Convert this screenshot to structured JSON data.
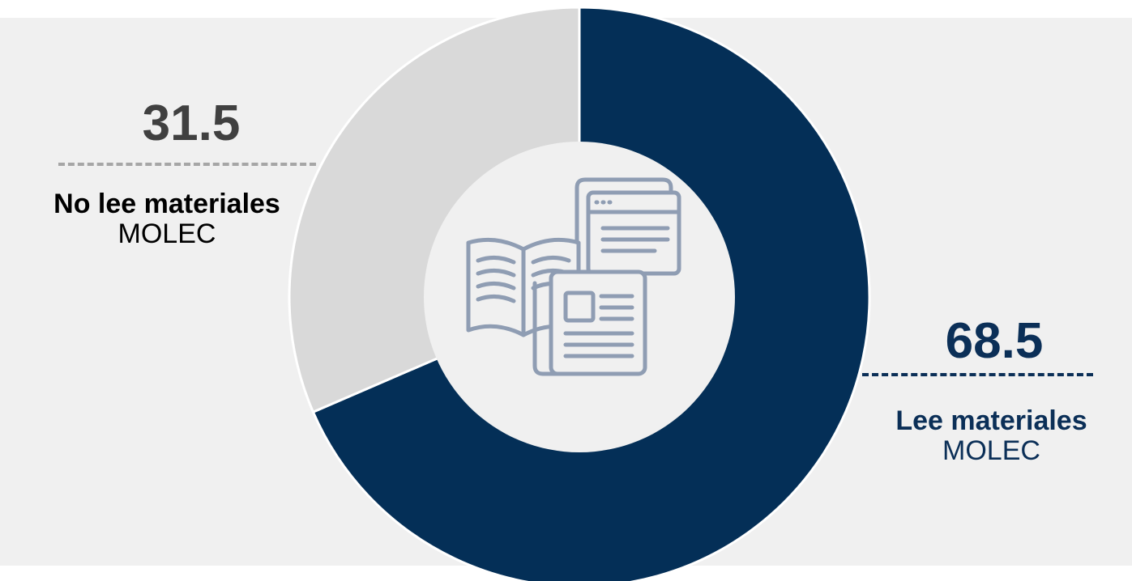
{
  "chart_data": {
    "type": "pie",
    "donut": true,
    "start_angle_deg": 0,
    "direction": "clockwise",
    "series": [
      {
        "value": 68.5,
        "value_label": "68.5",
        "label_main": "Lee materiales",
        "label_sub": "MOLEC",
        "color": "#042f57",
        "text_color": "#0b2f57"
      },
      {
        "value": 31.5,
        "value_label": "31.5",
        "label_main": "No lee materiales",
        "label_sub": "MOLEC",
        "color": "#d9d9d9",
        "text_color": "#404040",
        "main_color": "#000000",
        "sub_color": "#000000"
      }
    ]
  },
  "center_icon": {
    "name": "reading-materials-icon",
    "color": "#8f9db3"
  },
  "background_color": "#f0f0f0"
}
